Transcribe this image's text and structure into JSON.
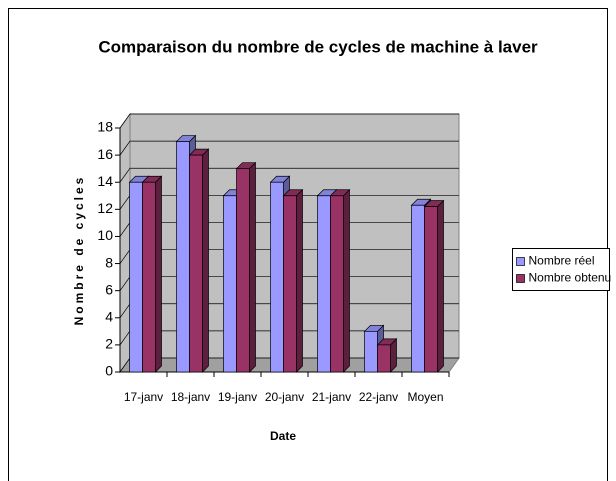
{
  "chart_data": {
    "type": "bar",
    "title": "Comparaison du nombre de cycles de machine à laver",
    "x_label": "Date",
    "y_label": "Nombre de cycles",
    "categories": [
      "17-janv",
      "18-janv",
      "19-janv",
      "20-janv",
      "21-janv",
      "22-janv",
      "Moyen"
    ],
    "series": [
      {
        "name": "Nombre réel",
        "color": "#9999ff",
        "values": [
          14,
          17,
          13,
          14,
          13,
          3,
          12.3
        ]
      },
      {
        "name": "Nombre obtenu",
        "color": "#993366",
        "values": [
          14,
          16,
          15,
          13,
          13,
          2,
          12.2
        ]
      }
    ],
    "ylim": [
      0,
      18
    ],
    "yticks": [
      0,
      2,
      4,
      6,
      8,
      10,
      12,
      14,
      16,
      18
    ],
    "grid": true,
    "legend": "right"
  }
}
